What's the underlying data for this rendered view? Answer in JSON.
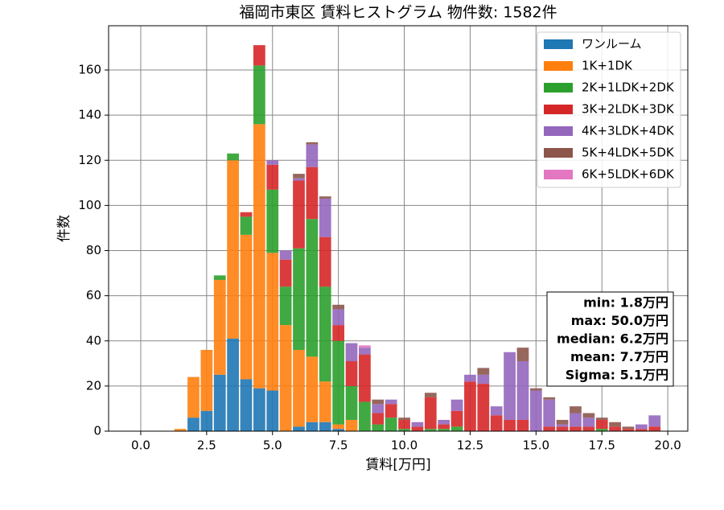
{
  "chart_data": {
    "type": "histogram",
    "title": "福岡市東区 賃料ヒストグラム  物件数: 1582件",
    "x_label": "賃料[万円]",
    "y_label": "件数",
    "bins": [
      1.25,
      1.75,
      2.25,
      2.75,
      3.25,
      3.75,
      4.25,
      4.75,
      5.25,
      5.75,
      6.25,
      6.75,
      7.25,
      7.75,
      8.25,
      8.75,
      9.25,
      9.75,
      10.25,
      10.75,
      11.25,
      11.75,
      12.25,
      12.75,
      13.25,
      13.75,
      14.25,
      14.75,
      15.25,
      15.75,
      16.25,
      16.75,
      17.25,
      17.75,
      18.25,
      18.75,
      19.25,
      19.75
    ],
    "series": [
      {
        "name": "ワンルーム",
        "color": "#1f77b4",
        "values": [
          0,
          6,
          9,
          25,
          41,
          23,
          19,
          18,
          0,
          2,
          4,
          4,
          1,
          0,
          0,
          0,
          0,
          0,
          0,
          0,
          0,
          0,
          0,
          0,
          0,
          0,
          0,
          0,
          0,
          0,
          0,
          0,
          0,
          0,
          0,
          0,
          0
        ]
      },
      {
        "name": "1K+1DK",
        "color": "#ff7f0e",
        "values": [
          1,
          18,
          27,
          42,
          79,
          64,
          117,
          61,
          47,
          34,
          29,
          18,
          2,
          5,
          0,
          0,
          0,
          0,
          0,
          0,
          0,
          0,
          0,
          0,
          0,
          0,
          0,
          0,
          0,
          0,
          0,
          0,
          0,
          0,
          0,
          0,
          0
        ]
      },
      {
        "name": "2K+1LDK+2DK",
        "color": "#2ca02c",
        "values": [
          0,
          0,
          0,
          2,
          3,
          8,
          26,
          28,
          17,
          45,
          61,
          42,
          37,
          15,
          13,
          3,
          6,
          1,
          0,
          1,
          1,
          2,
          0,
          0,
          0,
          0,
          0,
          0,
          0,
          0,
          0,
          0,
          1,
          0,
          0,
          0,
          0
        ]
      },
      {
        "name": "3K+2LDK+3DK",
        "color": "#d62728",
        "values": [
          0,
          0,
          0,
          0,
          0,
          2,
          9,
          11,
          12,
          30,
          23,
          22,
          7,
          11,
          21,
          5,
          6,
          4,
          2,
          14,
          2,
          7,
          22,
          21,
          7,
          5,
          5,
          0,
          2,
          2,
          2,
          2,
          4,
          2,
          1,
          1,
          2
        ]
      },
      {
        "name": "4K+3LDK+4DK",
        "color": "#9467bd",
        "values": [
          0,
          0,
          0,
          0,
          0,
          0,
          0,
          2,
          4,
          1,
          10,
          17,
          7,
          8,
          3,
          4,
          2,
          0,
          2,
          0,
          2,
          5,
          3,
          4,
          4,
          30,
          26,
          18,
          12,
          1,
          6,
          4,
          0,
          0,
          0,
          2,
          5
        ]
      },
      {
        "name": "5K+4LDK+5DK",
        "color": "#8c564b",
        "values": [
          0,
          0,
          0,
          0,
          0,
          0,
          0,
          0,
          0,
          2,
          1,
          1,
          2,
          0,
          0,
          2,
          0,
          1,
          0,
          2,
          0,
          0,
          0,
          3,
          0,
          0,
          6,
          1,
          1,
          2,
          3,
          2,
          1,
          2,
          1,
          0,
          0
        ]
      },
      {
        "name": "6K+5LDK+6DK",
        "color": "#e377c2",
        "values": [
          0,
          0,
          0,
          0,
          0,
          0,
          0,
          0,
          0,
          0,
          0,
          0,
          0,
          0,
          1,
          0,
          0,
          0,
          0,
          0,
          0,
          0,
          0,
          0,
          0,
          0,
          0,
          0,
          0,
          0,
          0,
          0,
          0,
          0,
          0,
          0,
          0
        ]
      }
    ],
    "xlim": [
      -1.22,
      20.76
    ],
    "ylim": [
      0,
      179.6
    ],
    "xticks": [
      {
        "value": 0,
        "label": "0.0"
      },
      2.5,
      {
        "value": 5,
        "label": "5.0"
      },
      7.5,
      {
        "value": 10,
        "label": "10.0"
      },
      12.5,
      {
        "value": 15,
        "label": "15.0"
      },
      17.5,
      {
        "value": 20,
        "label": "20.0"
      }
    ],
    "yticks": [
      0,
      20,
      40,
      60,
      80,
      100,
      120,
      140,
      160
    ],
    "grid": true,
    "legend": "upper right",
    "stats": [
      "min: 1.8万円",
      "max: 50.0万円",
      "median: 6.2万円",
      "mean: 7.7万円",
      "Sigma: 5.1万円"
    ]
  }
}
